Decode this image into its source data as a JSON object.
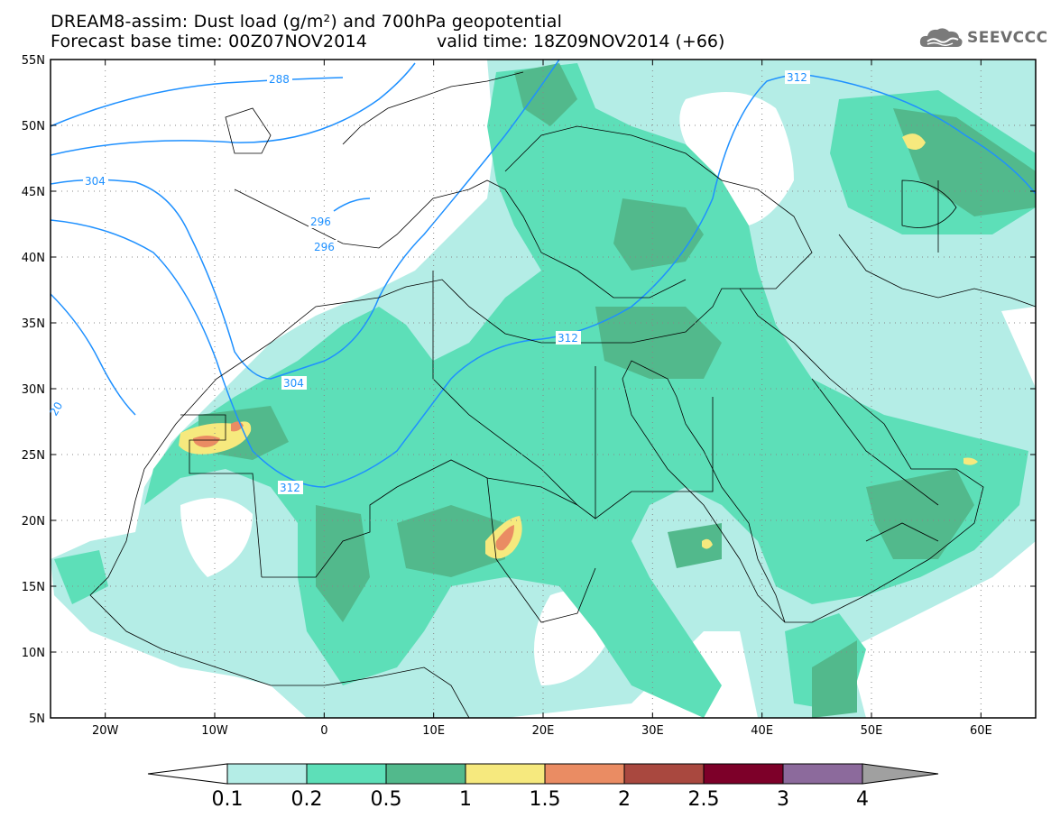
{
  "header": {
    "title_line1": "DREAM8-assim: Dust load (g/m²) and 700hPa geopotential",
    "base_time": "Forecast base time: 00Z07NOV2014",
    "valid_time": "valid time: 18Z09NOV2014 (+66)"
  },
  "logo": {
    "text": "SEEVCCC",
    "icon": "cloud-icon",
    "color": "#6e6e6e"
  },
  "map": {
    "lon_range": [
      -25,
      65
    ],
    "lat_range": [
      5,
      55
    ],
    "lat_labels": [
      "55N",
      "50N",
      "45N",
      "40N",
      "35N",
      "30N",
      "25N",
      "20N",
      "15N",
      "10N",
      "5N"
    ],
    "lon_labels": [
      "20W",
      "10W",
      "0",
      "10E",
      "20E",
      "30E",
      "40E",
      "50E",
      "60E"
    ],
    "contour_labels": [
      "288",
      "304",
      "296",
      "296",
      "304",
      "312",
      "312",
      "312",
      "20"
    ],
    "contour_color": "#1e90ff"
  },
  "colorbar": {
    "labels": [
      "0.1",
      "0.2",
      "0.5",
      "1",
      "1.5",
      "2",
      "2.5",
      "3",
      "4"
    ],
    "colors": [
      "#b4ede6",
      "#5ddfb8",
      "#52b98c",
      "#f6e97e",
      "#ea8c63",
      "#a9483f",
      "#7d0029",
      "#8c6a9c"
    ],
    "under_color": "#ffffff",
    "over_color": "#a0a0a0"
  }
}
